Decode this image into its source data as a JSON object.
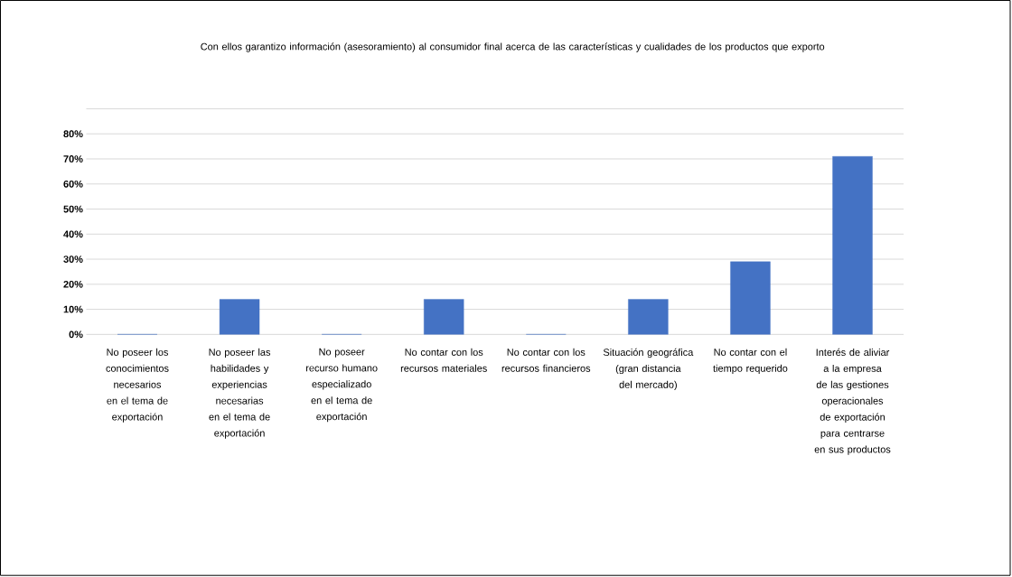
{
  "chart_data": {
    "type": "bar",
    "title": "Con ellos garantizo información (asesoramiento) al consumidor final acerca de las características y cualidades de los productos que exporto",
    "categories": [
      "No poseer los conocimientos necesarios en el tema de exportación",
      "No poseer las habilidades y experiencias necesarias en el tema de exportación",
      "No poseer recurso humano especializado en el tema de exportación",
      "No contar con los recursos materiales",
      "No contar con los recursos financieros",
      "Situación geográfica (gran distancia del mercado)",
      "No contar con el tiempo requerido",
      "Interés de aliviar a la empresa de las gestiones operacionales de exportación para centrarse en sus productos"
    ],
    "values": [
      0,
      14,
      0,
      14,
      0,
      14,
      29,
      71
    ],
    "color": "#4472c4",
    "ylim": [
      0,
      90
    ],
    "yticks": [
      {
        "value": 0,
        "label": "0%"
      },
      {
        "value": 10,
        "label": "10%"
      },
      {
        "value": 20,
        "label": "20%"
      },
      {
        "value": 30,
        "label": "30%"
      },
      {
        "value": 40,
        "label": "40%"
      },
      {
        "value": 50,
        "label": "50%"
      },
      {
        "value": 60,
        "label": "60%"
      },
      {
        "value": 70,
        "label": "70%"
      },
      {
        "value": 80,
        "label": "80%"
      },
      {
        "value": 90,
        "label": null
      }
    ],
    "grid": "y"
  }
}
